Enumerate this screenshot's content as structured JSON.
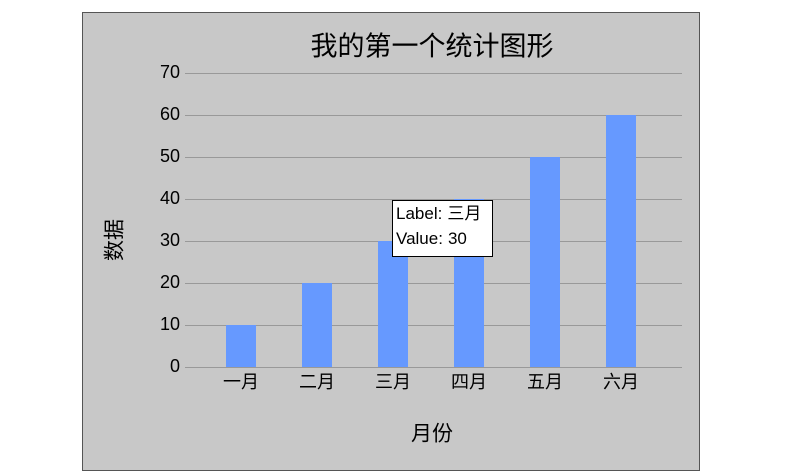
{
  "chart_data": {
    "type": "bar",
    "title": "我的第一个统计图形",
    "categories": [
      "一月",
      "二月",
      "三月",
      "四月",
      "五月",
      "六月"
    ],
    "values": [
      10,
      20,
      30,
      40,
      50,
      60
    ],
    "color": "#6699ff",
    "xlabel": "月份",
    "ylabel": "数据",
    "ylim": [
      0,
      70
    ],
    "yticks": [
      0,
      10,
      20,
      30,
      40,
      50,
      60,
      70
    ],
    "grid": true
  },
  "tooltip": {
    "label_prefix": "Label:",
    "value_prefix": "Value:"
  }
}
